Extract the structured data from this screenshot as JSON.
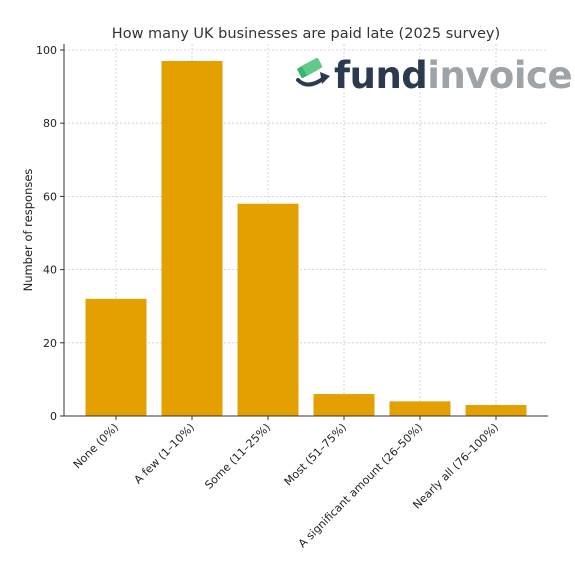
{
  "chart_data": {
    "type": "bar",
    "title": "How many UK businesses are paid late (2025 survey)",
    "xlabel": "",
    "ylabel": "Number of responses",
    "categories": [
      "None (0%)",
      "A few (1–10%)",
      "Some (11–25%)",
      "Most (51–75%)",
      "A significant amount (26–50%)",
      "Nearly all (76–100%)"
    ],
    "values": [
      32,
      97,
      58,
      6,
      4,
      3
    ],
    "ylim": [
      0,
      100
    ],
    "yticks": [
      0,
      20,
      40,
      60,
      80,
      100
    ],
    "grid": true,
    "bar_color": "#E3A000",
    "legend": "none"
  },
  "logo": {
    "text_fund": "fund",
    "text_invoice": "invoice",
    "fund_color": "#2B3A4E",
    "invoice_color": "#9EA3A8",
    "icon": "money-arrow-icon"
  }
}
